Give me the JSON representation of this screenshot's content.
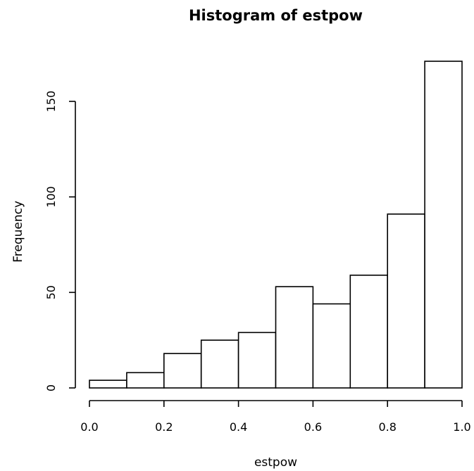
{
  "chart_data": {
    "type": "bar",
    "title": "Histogram of estpow",
    "xlabel": "estpow",
    "ylabel": "Frequency",
    "bins": [
      {
        "start": 0.0,
        "end": 0.1,
        "count": 4
      },
      {
        "start": 0.1,
        "end": 0.2,
        "count": 8
      },
      {
        "start": 0.2,
        "end": 0.3,
        "count": 18
      },
      {
        "start": 0.3,
        "end": 0.4,
        "count": 25
      },
      {
        "start": 0.4,
        "end": 0.5,
        "count": 29
      },
      {
        "start": 0.5,
        "end": 0.6,
        "count": 53
      },
      {
        "start": 0.6,
        "end": 0.7,
        "count": 44
      },
      {
        "start": 0.7,
        "end": 0.8,
        "count": 59
      },
      {
        "start": 0.8,
        "end": 0.9,
        "count": 91
      },
      {
        "start": 0.9,
        "end": 1.0,
        "count": 171
      }
    ],
    "xlim": [
      0.0,
      1.0
    ],
    "ylim": [
      0,
      171
    ],
    "x_ticks": [
      0.0,
      0.2,
      0.4,
      0.6,
      0.8,
      1.0
    ],
    "x_tick_labels": [
      "0.0",
      "0.2",
      "0.4",
      "0.6",
      "0.8",
      "1.0"
    ],
    "y_ticks": [
      0,
      50,
      100,
      150
    ],
    "y_tick_labels": [
      "0",
      "50",
      "100",
      "150"
    ],
    "grid": false,
    "legend": "none"
  }
}
